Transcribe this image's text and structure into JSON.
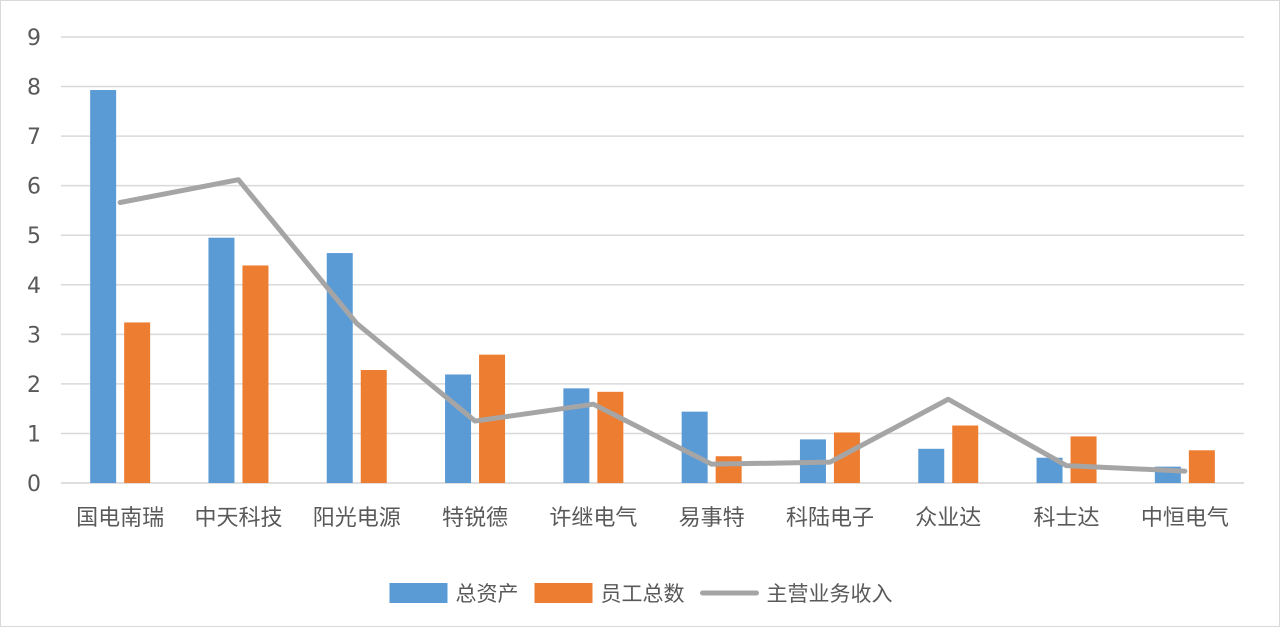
{
  "chart_data": {
    "type": "bar",
    "categories": [
      "国电南瑞",
      "中天科技",
      "阳光电源",
      "特锐德",
      "许继电气",
      "易事特",
      "科陆电子",
      "众业达",
      "科士达",
      "中恒电气"
    ],
    "series": [
      {
        "name": "总资产",
        "kind": "bar",
        "color": "#5b9bd5",
        "values": [
          7.93,
          4.95,
          4.64,
          2.19,
          1.91,
          1.44,
          0.88,
          0.69,
          0.51,
          0.33
        ]
      },
      {
        "name": "员工总数",
        "kind": "bar",
        "color": "#ed7d31",
        "values": [
          3.24,
          4.39,
          2.28,
          2.59,
          1.84,
          0.54,
          1.02,
          1.16,
          0.94,
          0.66
        ]
      },
      {
        "name": "主营业务收入",
        "kind": "line",
        "color": "#a5a5a5",
        "values": [
          5.66,
          6.12,
          3.22,
          1.25,
          1.59,
          0.38,
          0.42,
          1.69,
          0.35,
          0.24
        ]
      }
    ],
    "ylim": [
      0,
      9
    ],
    "yticks": [
      "0",
      "1",
      "2",
      "3",
      "4",
      "5",
      "6",
      "7",
      "8",
      "9"
    ],
    "grid": true,
    "legend": "bottom",
    "title": "",
    "xlabel": "",
    "ylabel": ""
  }
}
